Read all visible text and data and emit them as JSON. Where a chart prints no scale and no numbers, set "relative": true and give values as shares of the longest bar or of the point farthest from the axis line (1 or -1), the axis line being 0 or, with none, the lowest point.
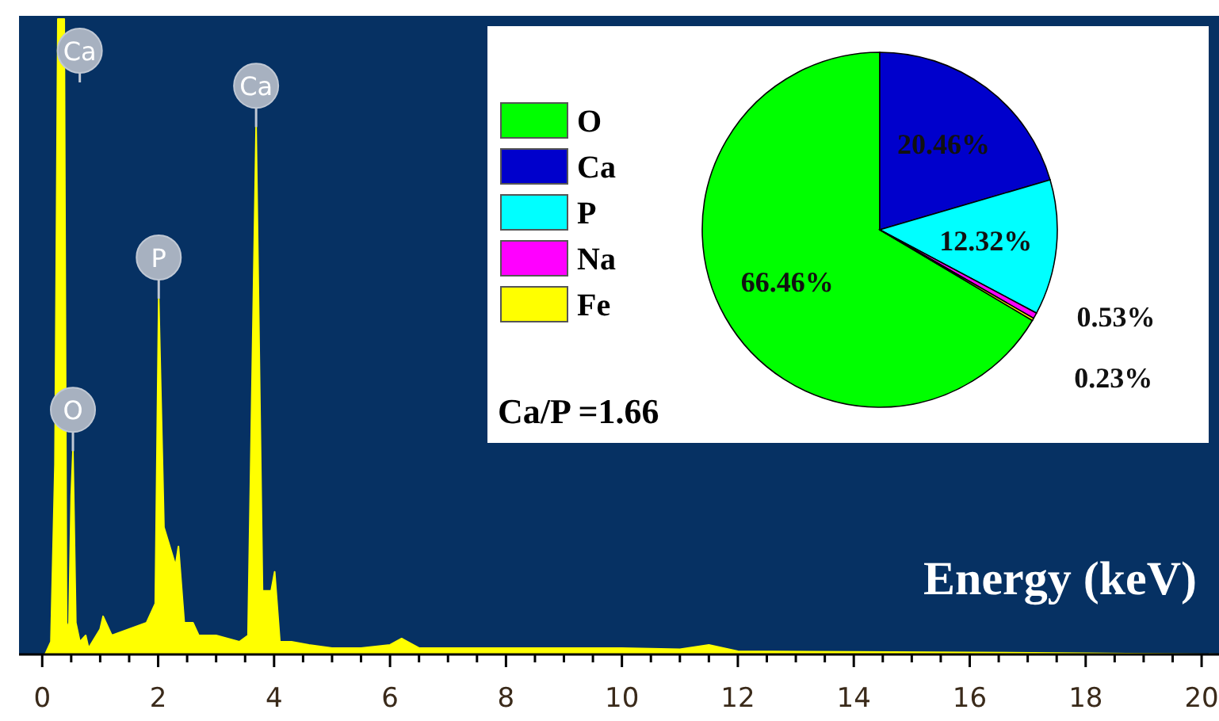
{
  "chart_data": [
    {
      "type": "area",
      "xlabel": "Energy (keV)",
      "relative": true,
      "tick_labels": "x",
      "xlim": [
        -0.4,
        20.3
      ],
      "xticks": [
        0,
        {
          "value": 0.5,
          "label": null
        },
        {
          "value": 1,
          "label": null
        },
        {
          "value": 1.5,
          "label": null
        },
        2,
        {
          "value": 2.5,
          "label": null
        },
        {
          "value": 3,
          "label": null
        },
        {
          "value": 3.5,
          "label": null
        },
        4,
        {
          "value": 4.5,
          "label": null
        },
        {
          "value": 5,
          "label": null
        },
        {
          "value": 5.5,
          "label": null
        },
        6,
        {
          "value": 6.5,
          "label": null
        },
        {
          "value": 7,
          "label": null
        },
        {
          "value": 7.5,
          "label": null
        },
        8,
        {
          "value": 8.5,
          "label": null
        },
        {
          "value": 9,
          "label": null
        },
        {
          "value": 9.5,
          "label": null
        },
        10,
        {
          "value": 10.5,
          "label": null
        },
        {
          "value": 11,
          "label": null
        },
        {
          "value": 11.5,
          "label": null
        },
        12,
        {
          "value": 12.5,
          "label": null
        },
        {
          "value": 13,
          "label": null
        },
        {
          "value": 13.5,
          "label": null
        },
        14,
        {
          "value": 14.5,
          "label": null
        },
        {
          "value": 15,
          "label": null
        },
        {
          "value": 15.5,
          "label": null
        },
        16,
        {
          "value": 16.5,
          "label": null
        },
        {
          "value": 17,
          "label": null
        },
        {
          "value": 17.5,
          "label": null
        },
        18,
        {
          "value": 18.5,
          "label": null
        },
        {
          "value": 19,
          "label": null
        },
        {
          "value": 19.5,
          "label": null
        },
        20
      ],
      "series": [
        {
          "color": "#ffff00",
          "x": [
            0.05,
            0.15,
            0.22,
            0.27,
            0.38,
            0.42,
            0.46,
            0.5,
            0.53,
            0.58,
            0.65,
            0.75,
            0.8,
            1.0,
            1.05,
            1.2,
            1.5,
            1.8,
            1.95,
            2.01,
            2.1,
            2.2,
            2.3,
            2.35,
            2.45,
            2.6,
            2.7,
            3.0,
            3.4,
            3.55,
            3.69,
            3.8,
            3.95,
            4.01,
            4.1,
            4.3,
            4.6,
            5.0,
            5.5,
            6.0,
            6.2,
            6.5,
            7,
            8,
            9,
            10,
            11,
            11.5,
            12,
            14,
            16,
            18,
            20.3
          ],
          "values": [
            0,
            0.02,
            0.3,
            1.0,
            1.0,
            0.05,
            0.04,
            0.25,
            0.32,
            0.05,
            0.02,
            0.03,
            0.01,
            0.04,
            0.06,
            0.03,
            0.04,
            0.05,
            0.08,
            0.56,
            0.2,
            0.17,
            0.14,
            0.17,
            0.05,
            0.05,
            0.03,
            0.03,
            0.02,
            0.03,
            0.83,
            0.1,
            0.1,
            0.13,
            0.02,
            0.02,
            0.015,
            0.01,
            0.01,
            0.015,
            0.025,
            0.01,
            0.01,
            0.01,
            0.01,
            0.01,
            0.008,
            0.015,
            0.005,
            0.004,
            0.003,
            0.002,
            0
          ]
        }
      ],
      "annotations": [
        {
          "text": "Ca",
          "x": 0.32,
          "y": 1.0
        },
        {
          "text": "O",
          "x": 0.53,
          "y": 0.32
        },
        {
          "text": "P",
          "x": 2.01,
          "y": 0.56
        },
        {
          "text": "Ca",
          "x": 3.69,
          "y": 0.83
        }
      ]
    },
    {
      "type": "pie",
      "categories": [
        "O",
        "Ca",
        "P",
        "Na",
        "Fe"
      ],
      "values": [
        66.46,
        20.46,
        12.32,
        0.53,
        0.23
      ],
      "colors": [
        "#00ff00",
        "#0000cc",
        "#00ffff",
        "#ff00ff",
        "#ffff00"
      ],
      "value_labels": [
        "66.46%",
        "20.46%",
        "12.32%",
        "0.53%",
        "0.23%"
      ],
      "legend": "left",
      "annotations": [
        "Ca/P =1.66"
      ]
    }
  ]
}
